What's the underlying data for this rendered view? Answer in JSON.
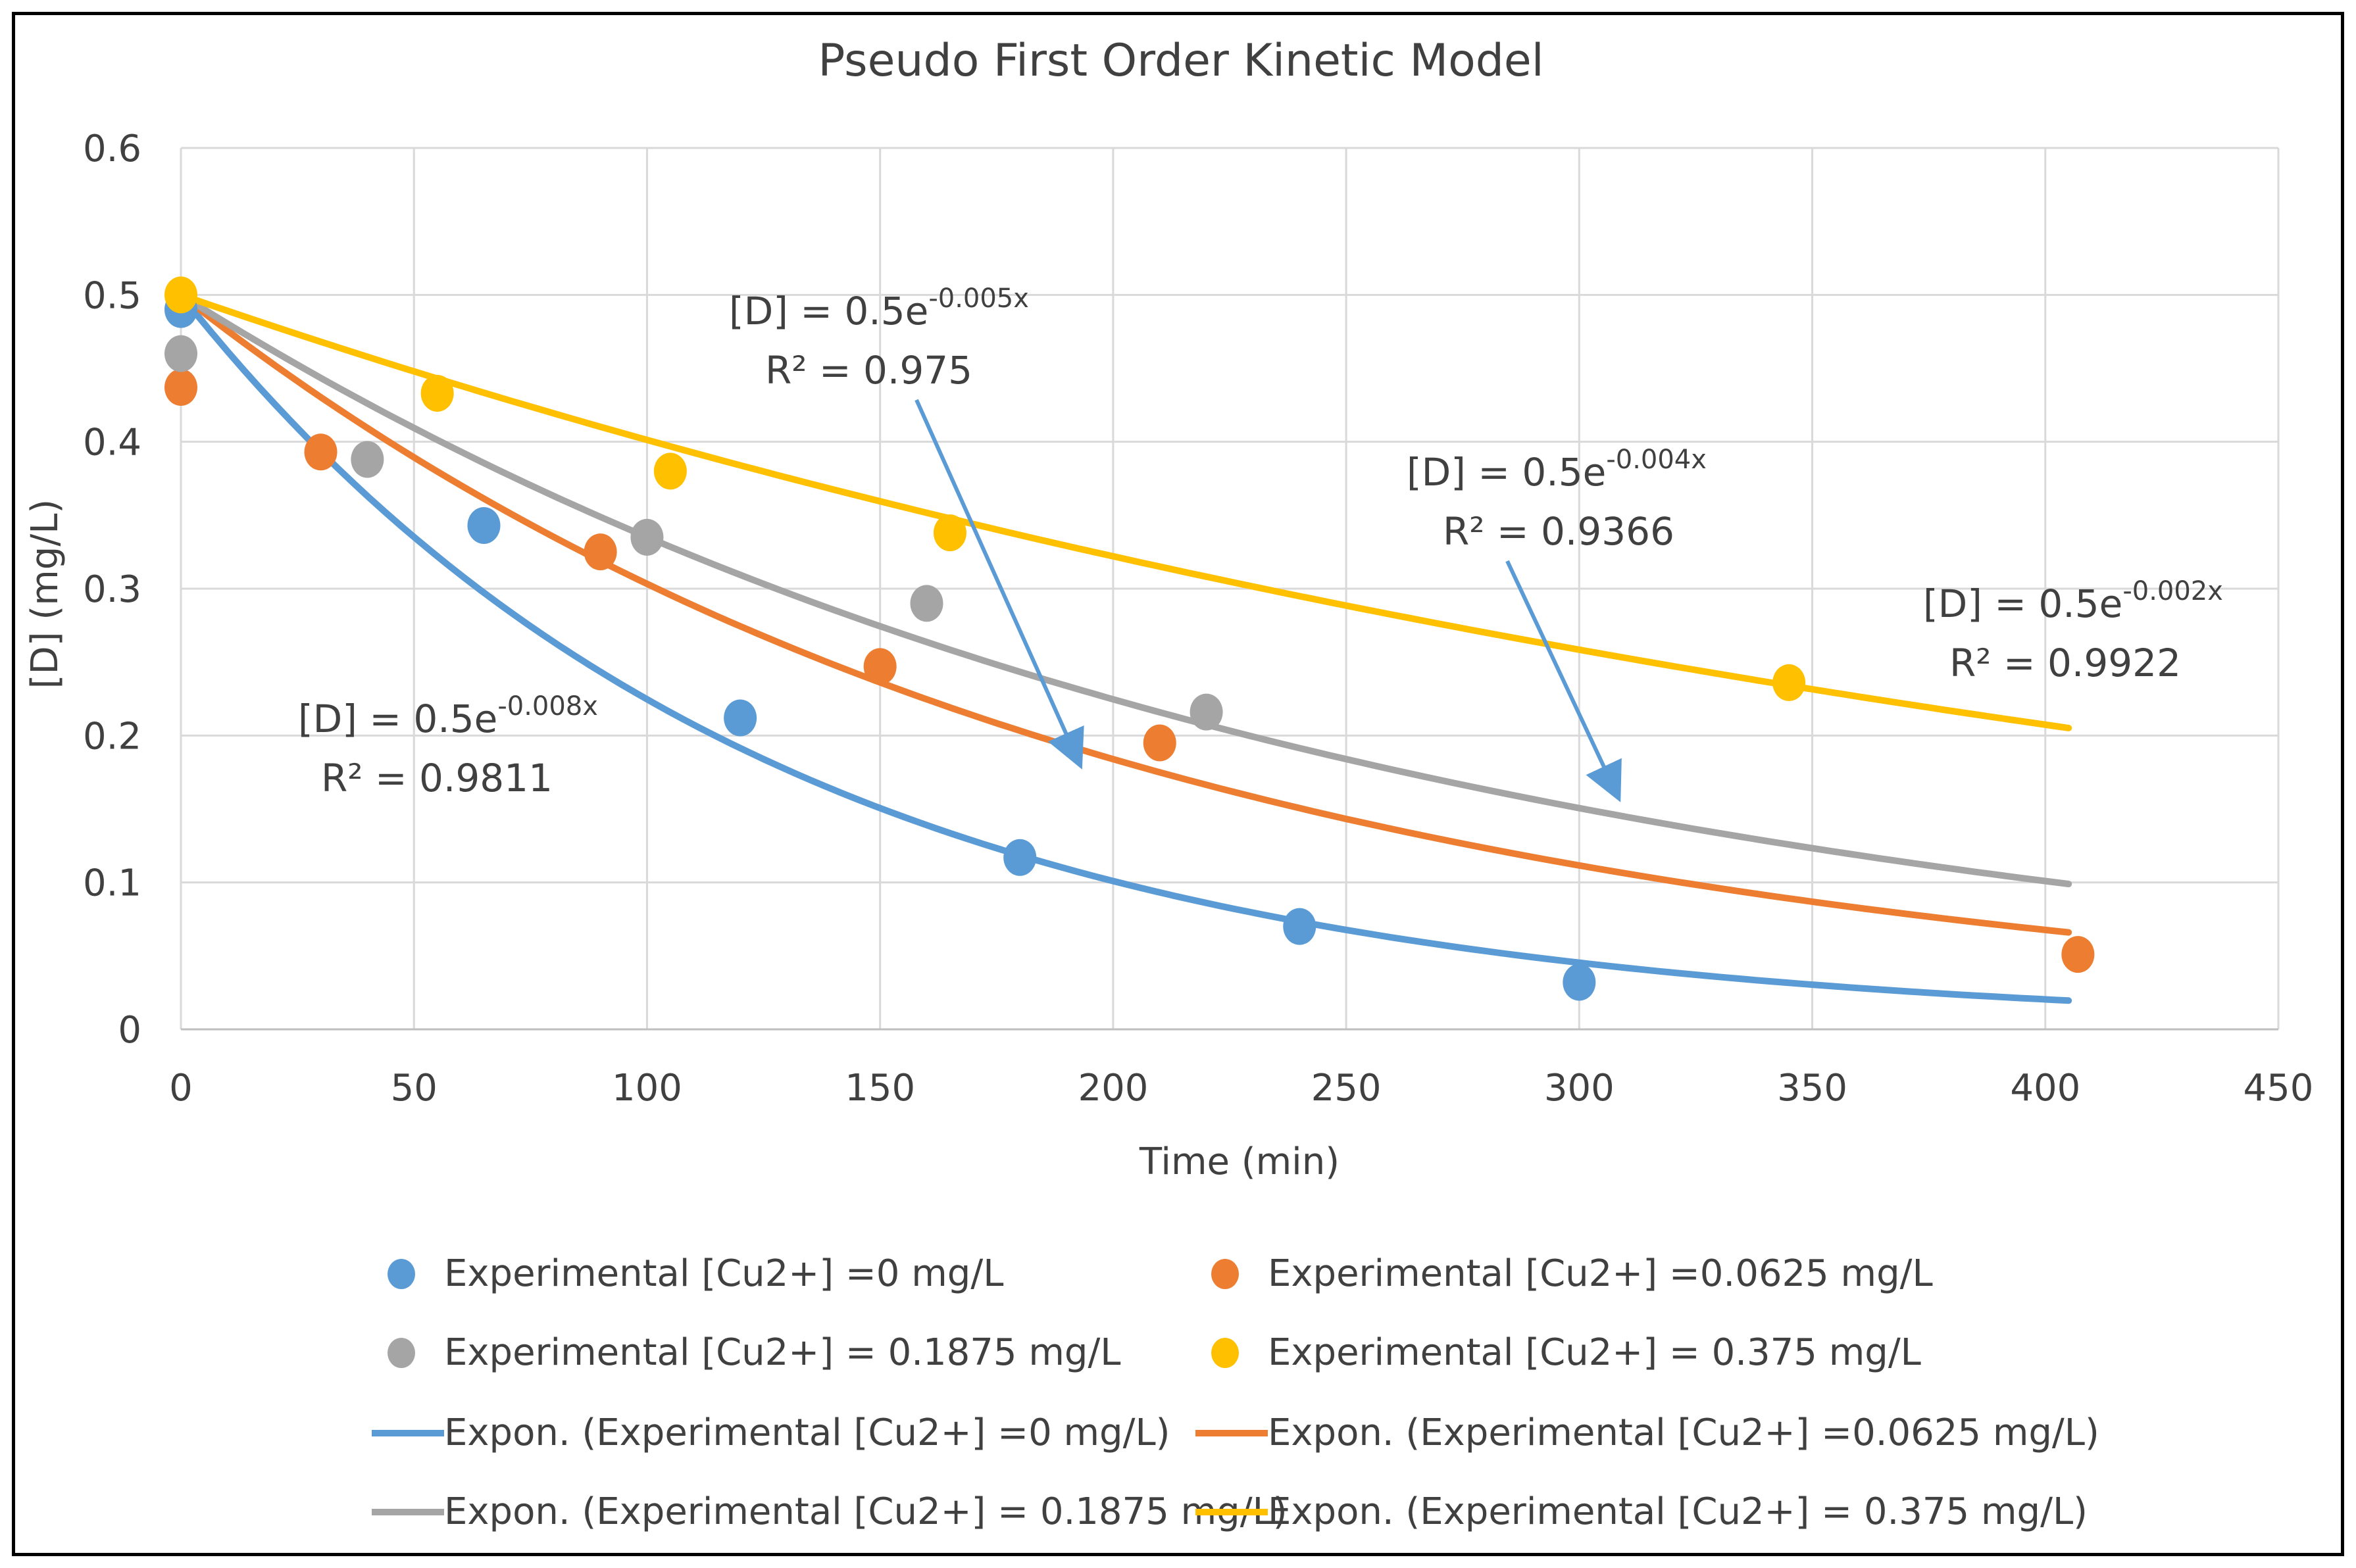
{
  "chart_data": {
    "type": "scatter",
    "title": "Pseudo First Order Kinetic Model",
    "xlabel": "Time (min)",
    "ylabel": "[D]     (mg/L)",
    "xlim": [
      0,
      450
    ],
    "ylim": [
      0,
      0.6
    ],
    "xticks": [
      "0",
      "50",
      "100",
      "150",
      "200",
      "250",
      "300",
      "350",
      "400",
      "450"
    ],
    "yticks": [
      "0",
      "0.1",
      "0.2",
      "0.3",
      "0.4",
      "0.5",
      "0.6"
    ],
    "grid": true,
    "legend_position": "bottom",
    "series": [
      {
        "name": "Experimental [Cu2+] =0 mg/L",
        "trend_name": "Expon. (Experimental [Cu2+] =0 mg/L)",
        "color": "#5b9bd5",
        "x": [
          0,
          65,
          120,
          180,
          240,
          300
        ],
        "y": [
          0.49,
          0.343,
          0.212,
          0.117,
          0.07,
          0.032
        ],
        "fit_a": 0.5,
        "fit_k": 0.008,
        "fit_xmax": 405,
        "equation_prefix": "[D] = 0.5e",
        "exponent": "-0.008x",
        "r2": "R² = 0.9811"
      },
      {
        "name": "Experimental [Cu2+] =0.0625 mg/L",
        "trend_name": "Expon. (Experimental [Cu2+] =0.0625 mg/L)",
        "color": "#ed7d31",
        "x": [
          0,
          30,
          90,
          150,
          210,
          407
        ],
        "y": [
          0.437,
          0.393,
          0.325,
          0.247,
          0.195,
          0.051
        ],
        "fit_a": 0.5,
        "fit_k": 0.005,
        "fit_xmax": 405,
        "equation_prefix": "[D] = 0.5e",
        "exponent": "-0.005x",
        "r2": "R² = 0.975"
      },
      {
        "name": "Experimental [Cu2+] = 0.1875 mg/L",
        "trend_name": "Expon. (Experimental [Cu2+] = 0.1875 mg/L)",
        "color": "#a5a5a5",
        "x": [
          0,
          40,
          100,
          160,
          220
        ],
        "y": [
          0.46,
          0.388,
          0.335,
          0.29,
          0.216
        ],
        "fit_a": 0.5,
        "fit_k": 0.004,
        "fit_xmax": 405,
        "equation_prefix": "[D] = 0.5e",
        "exponent": "-0.004x",
        "r2": "R² = 0.9366"
      },
      {
        "name": "Experimental [Cu2+] = 0.375 mg/L",
        "trend_name": "Expon. (Experimental [Cu2+] = 0.375 mg/L)",
        "color": "#ffc000",
        "x": [
          0,
          55,
          105,
          165,
          345
        ],
        "y": [
          0.5,
          0.433,
          0.38,
          0.338,
          0.236
        ],
        "fit_a": 0.5,
        "fit_k": 0.0022,
        "fit_xmax": 405,
        "equation_prefix": "[D] = 0.5e",
        "exponent": "-0.002x",
        "r2": "R² = 0.9922"
      }
    ]
  }
}
